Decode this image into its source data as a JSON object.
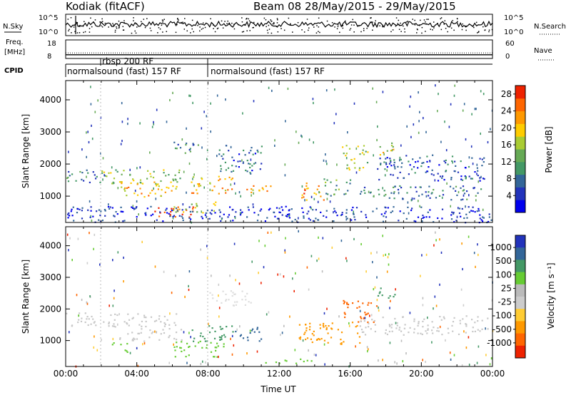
{
  "header": {
    "station": "Kodiak (fitACF)",
    "beam_dates": "Beam 08 28/May/2015 - 29/May/2015"
  },
  "colors": {
    "power_scale": [
      "#0000ee",
      "#2233bb",
      "#336699",
      "#449966",
      "#66aa55",
      "#aacc33",
      "#ffcc00",
      "#ff9900",
      "#ff6600",
      "#ee2200"
    ],
    "velocity_scale": [
      "#2233bb",
      "#336699",
      "#449966",
      "#66cc33",
      "#bbbbbb",
      "#cccccc",
      "#ffcc33",
      "#ff9900",
      "#ff6600",
      "#ee2200"
    ],
    "ground_scatter": "#c8c8c8"
  },
  "chart_data": [
    {
      "type": "line",
      "panel": "noise",
      "left_label": "N.Sky",
      "right_label": "N.Search",
      "left_ticks": [
        "10^5",
        "10^0"
      ],
      "right_ticks": [
        "10^5",
        "10^0"
      ]
    },
    {
      "type": "line",
      "panel": "frequency",
      "left_label_line1": "Freq.",
      "left_label_line2": "[MHz]",
      "right_label": "Nave",
      "left_ticks": [
        18,
        8
      ],
      "right_ticks": [
        60,
        0
      ],
      "freq_mhz": 10,
      "nave": 18
    },
    {
      "type": "table",
      "panel": "cpid",
      "label": "CPID",
      "segments": [
        {
          "name": "normalsound (fast) 157 RF",
          "start_h": 0,
          "end_h": 8
        },
        {
          "name": "rbsp 200 RF",
          "start_h": 2,
          "end_h": 8
        },
        {
          "name": "normalsound (fast) 157 RF",
          "start_h": 8,
          "end_h": 24
        }
      ]
    },
    {
      "type": "heatmap",
      "panel": "power",
      "ylabel": "Slant Range [km]",
      "ylim": [
        180,
        4600
      ],
      "yticks": [
        1000,
        2000,
        3000,
        4000
      ],
      "xlim": [
        0,
        24
      ],
      "colorbar_label": "Power [dB]",
      "colorbar_ticks": [
        4,
        8,
        12,
        16,
        20,
        24,
        28
      ],
      "clim": [
        0,
        30
      ],
      "blobs": [
        {
          "t0": 0.0,
          "t1": 1.8,
          "r0": 1450,
          "r1": 1900,
          "v": 9
        },
        {
          "t0": 1.8,
          "t1": 6.5,
          "r0": 1400,
          "r1": 1850,
          "v": 14
        },
        {
          "t0": 3.0,
          "t1": 6.5,
          "r0": 1000,
          "r1": 1500,
          "v": 20
        },
        {
          "t0": 4.8,
          "t1": 7.2,
          "r0": 350,
          "r1": 700,
          "v": 27
        },
        {
          "t0": 6.0,
          "t1": 8.5,
          "r0": 500,
          "r1": 850,
          "v": 18
        },
        {
          "t0": 7.0,
          "t1": 9.5,
          "r0": 1100,
          "r1": 1650,
          "v": 22
        },
        {
          "t0": 8.5,
          "t1": 11.0,
          "r0": 1700,
          "r1": 2600,
          "v": 7
        },
        {
          "t0": 10.0,
          "t1": 11.5,
          "r0": 1050,
          "r1": 1400,
          "v": 21
        },
        {
          "t0": 13.0,
          "t1": 14.5,
          "r0": 900,
          "r1": 1450,
          "v": 23
        },
        {
          "t0": 14.5,
          "t1": 16.0,
          "r0": 1000,
          "r1": 1600,
          "v": 12
        },
        {
          "t0": 15.5,
          "t1": 17.0,
          "r0": 1800,
          "r1": 2600,
          "v": 16
        },
        {
          "t0": 16.5,
          "t1": 23.5,
          "r0": 900,
          "r1": 1350,
          "v": 8
        },
        {
          "t0": 17.5,
          "t1": 23.5,
          "r0": 1500,
          "r1": 2300,
          "v": 6
        },
        {
          "t0": 17.5,
          "t1": 18.5,
          "r0": 2300,
          "r1": 2700,
          "v": 17
        },
        {
          "t0": 6.0,
          "t1": 7.8,
          "r0": 2350,
          "r1": 2700,
          "v": 10
        },
        {
          "t0": 0.0,
          "t1": 23.9,
          "r0": 200,
          "r1": 700,
          "v": 4
        }
      ]
    },
    {
      "type": "heatmap",
      "panel": "velocity",
      "ylabel": "Slant Range [km]",
      "ylim": [
        180,
        4600
      ],
      "yticks": [
        1000,
        2000,
        3000,
        4000
      ],
      "xlim": [
        0,
        24
      ],
      "xlabel": "Time UT",
      "xtick_labels": [
        "00:00",
        "04:00",
        "08:00",
        "12:00",
        "16:00",
        "20:00",
        "00:00"
      ],
      "colorbar_label": "Velocity [m s⁻¹]",
      "colorbar_ticks": [
        "1000",
        "500",
        "100",
        "25",
        "-25",
        "-100",
        "-500",
        "-1000"
      ],
      "blobs": [
        {
          "t0": 0.0,
          "t1": 6.5,
          "r0": 1450,
          "r1": 1900,
          "c": "#c8c8c8"
        },
        {
          "t0": 3.0,
          "t1": 6.5,
          "r0": 1000,
          "r1": 1400,
          "c": "#c8c8c8"
        },
        {
          "t0": 6.0,
          "t1": 9.0,
          "r0": 500,
          "r1": 1000,
          "c": "#66cc33"
        },
        {
          "t0": 7.0,
          "t1": 9.5,
          "r0": 1000,
          "r1": 1500,
          "c": "#449966"
        },
        {
          "t0": 9.5,
          "t1": 11.0,
          "r0": 1000,
          "r1": 1450,
          "c": "#336699"
        },
        {
          "t0": 2.5,
          "t1": 3.5,
          "r0": 650,
          "r1": 950,
          "c": "#66cc33"
        },
        {
          "t0": 13.0,
          "t1": 16.5,
          "r0": 900,
          "r1": 1600,
          "c": "#ff9900"
        },
        {
          "t0": 15.5,
          "t1": 17.5,
          "r0": 1600,
          "r1": 2300,
          "c": "#ff6600"
        },
        {
          "t0": 16.5,
          "t1": 23.8,
          "r0": 1200,
          "r1": 1800,
          "c": "#c8c8c8"
        },
        {
          "t0": 17.5,
          "t1": 18.5,
          "r0": 2300,
          "r1": 2700,
          "c": "#449966"
        },
        {
          "t0": 8.0,
          "t1": 10.5,
          "r0": 2100,
          "r1": 2600,
          "c": "#dddddd"
        },
        {
          "t0": 11.0,
          "t1": 14.0,
          "r0": 300,
          "r1": 450,
          "c": "#66cc33"
        }
      ]
    }
  ]
}
